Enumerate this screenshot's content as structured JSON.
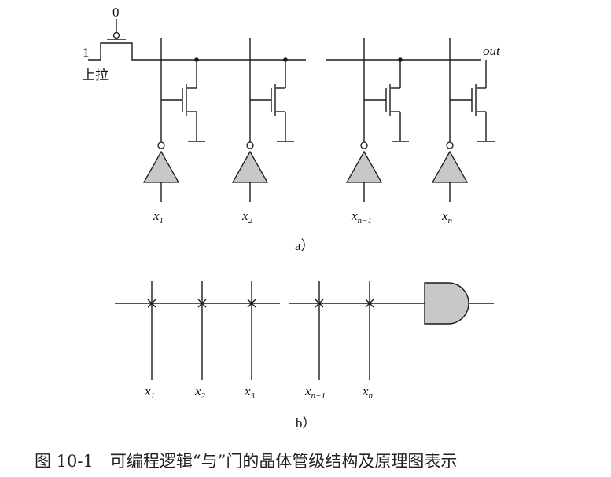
{
  "diagram_a": {
    "pullup_gate_value": "0",
    "pullup_source_value": "1",
    "pullup_label": "上拉",
    "output_label": "out",
    "inputs": [
      {
        "base": "x",
        "sub": "1"
      },
      {
        "base": "x",
        "sub": "2"
      },
      {
        "base": "x",
        "sub": "n−1"
      },
      {
        "base": "x",
        "sub": "n"
      }
    ],
    "panel_label": "a）"
  },
  "diagram_b": {
    "inputs": [
      {
        "base": "x",
        "sub": "1"
      },
      {
        "base": "x",
        "sub": "2"
      },
      {
        "base": "x",
        "sub": "3"
      },
      {
        "base": "x",
        "sub": "n−1"
      },
      {
        "base": "x",
        "sub": "n"
      }
    ],
    "panel_label": "b）"
  },
  "caption": "图 10-1　可编程逻辑“与”门的晶体管级结构及原理图表示",
  "colors": {
    "gate_fill": "#c8c8c8",
    "line": "#1a1a1a"
  }
}
